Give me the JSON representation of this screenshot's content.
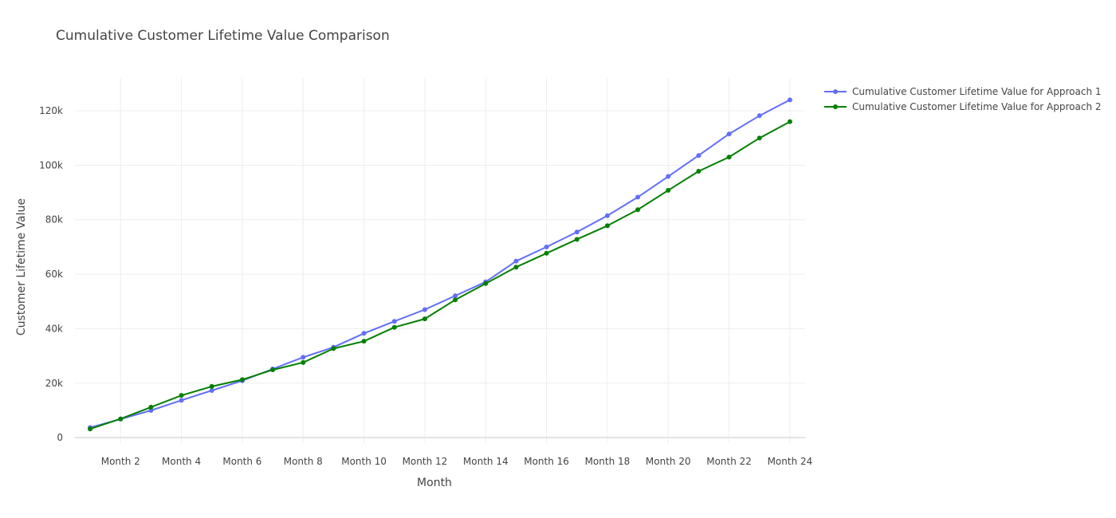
{
  "chart_data": {
    "type": "line",
    "title": "Cumulative Customer Lifetime Value Comparison",
    "xlabel": "Month",
    "ylabel": "Customer Lifetime Value",
    "categories": [
      "Month 1",
      "Month 2",
      "Month 3",
      "Month 4",
      "Month 5",
      "Month 6",
      "Month 7",
      "Month 8",
      "Month 9",
      "Month 10",
      "Month 11",
      "Month 12",
      "Month 13",
      "Month 14",
      "Month 15",
      "Month 16",
      "Month 17",
      "Month 18",
      "Month 19",
      "Month 20",
      "Month 21",
      "Month 22",
      "Month 23",
      "Month 24"
    ],
    "x_tick_labels": [
      "Month 2",
      "Month 4",
      "Month 6",
      "Month 8",
      "Month 10",
      "Month 12",
      "Month 14",
      "Month 16",
      "Month 18",
      "Month 20",
      "Month 22",
      "Month 24"
    ],
    "y_ticks": [
      0,
      20000,
      40000,
      60000,
      80000,
      100000,
      120000
    ],
    "y_tick_labels": [
      "0",
      "20k",
      "40k",
      "60k",
      "80k",
      "100k",
      "120k"
    ],
    "ylim": [
      -2000,
      132000
    ],
    "grid": true,
    "legend_position": "top-right",
    "series": [
      {
        "name": "Cumulative Customer Lifetime Value for Approach 1",
        "color": "#636efa",
        "values": [
          3700,
          6800,
          10000,
          13700,
          17300,
          20900,
          25200,
          29500,
          33200,
          38300,
          42700,
          47000,
          52100,
          57200,
          64800,
          70000,
          75500,
          81500,
          88300,
          95900,
          103600,
          111500,
          118200,
          124000
        ]
      },
      {
        "name": "Cumulative Customer Lifetime Value for Approach 2",
        "color": "#008000",
        "values": [
          3200,
          6900,
          11200,
          15500,
          18800,
          21300,
          24900,
          27600,
          32700,
          35400,
          40500,
          43600,
          50600,
          56600,
          62600,
          67700,
          72800,
          77800,
          83700,
          90800,
          97800,
          103000,
          110000,
          116000
        ]
      }
    ]
  }
}
